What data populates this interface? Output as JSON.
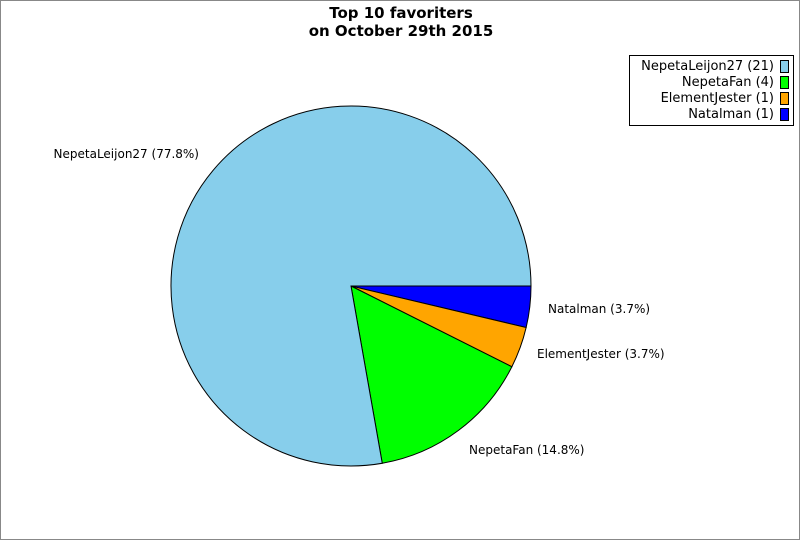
{
  "chart_data": {
    "type": "pie",
    "title": [
      "Top 10 favoriters",
      "on October 29th 2015"
    ],
    "slices": [
      {
        "label": "Natalman",
        "value": 1,
        "percent_label": "Natalman (3.7%)",
        "legend": "Natalman (1)",
        "color": "#0000ff"
      },
      {
        "label": "ElementJester",
        "value": 1,
        "percent_label": "ElementJester (3.7%)",
        "legend": "ElementJester (1)",
        "color": "#ffa500"
      },
      {
        "label": "NepetaFan",
        "value": 4,
        "percent_label": "NepetaFan (14.8%)",
        "legend": "NepetaFan (4)",
        "color": "#00ff00"
      },
      {
        "label": "NepetaLeijon27",
        "value": 21,
        "percent_label": "NepetaLeijon27 (77.8%)",
        "legend": "NepetaLeijon27 (21)",
        "color": "#87ceeb"
      }
    ],
    "legend_order": [
      3,
      2,
      1,
      0
    ],
    "legend_position": "top-right"
  }
}
